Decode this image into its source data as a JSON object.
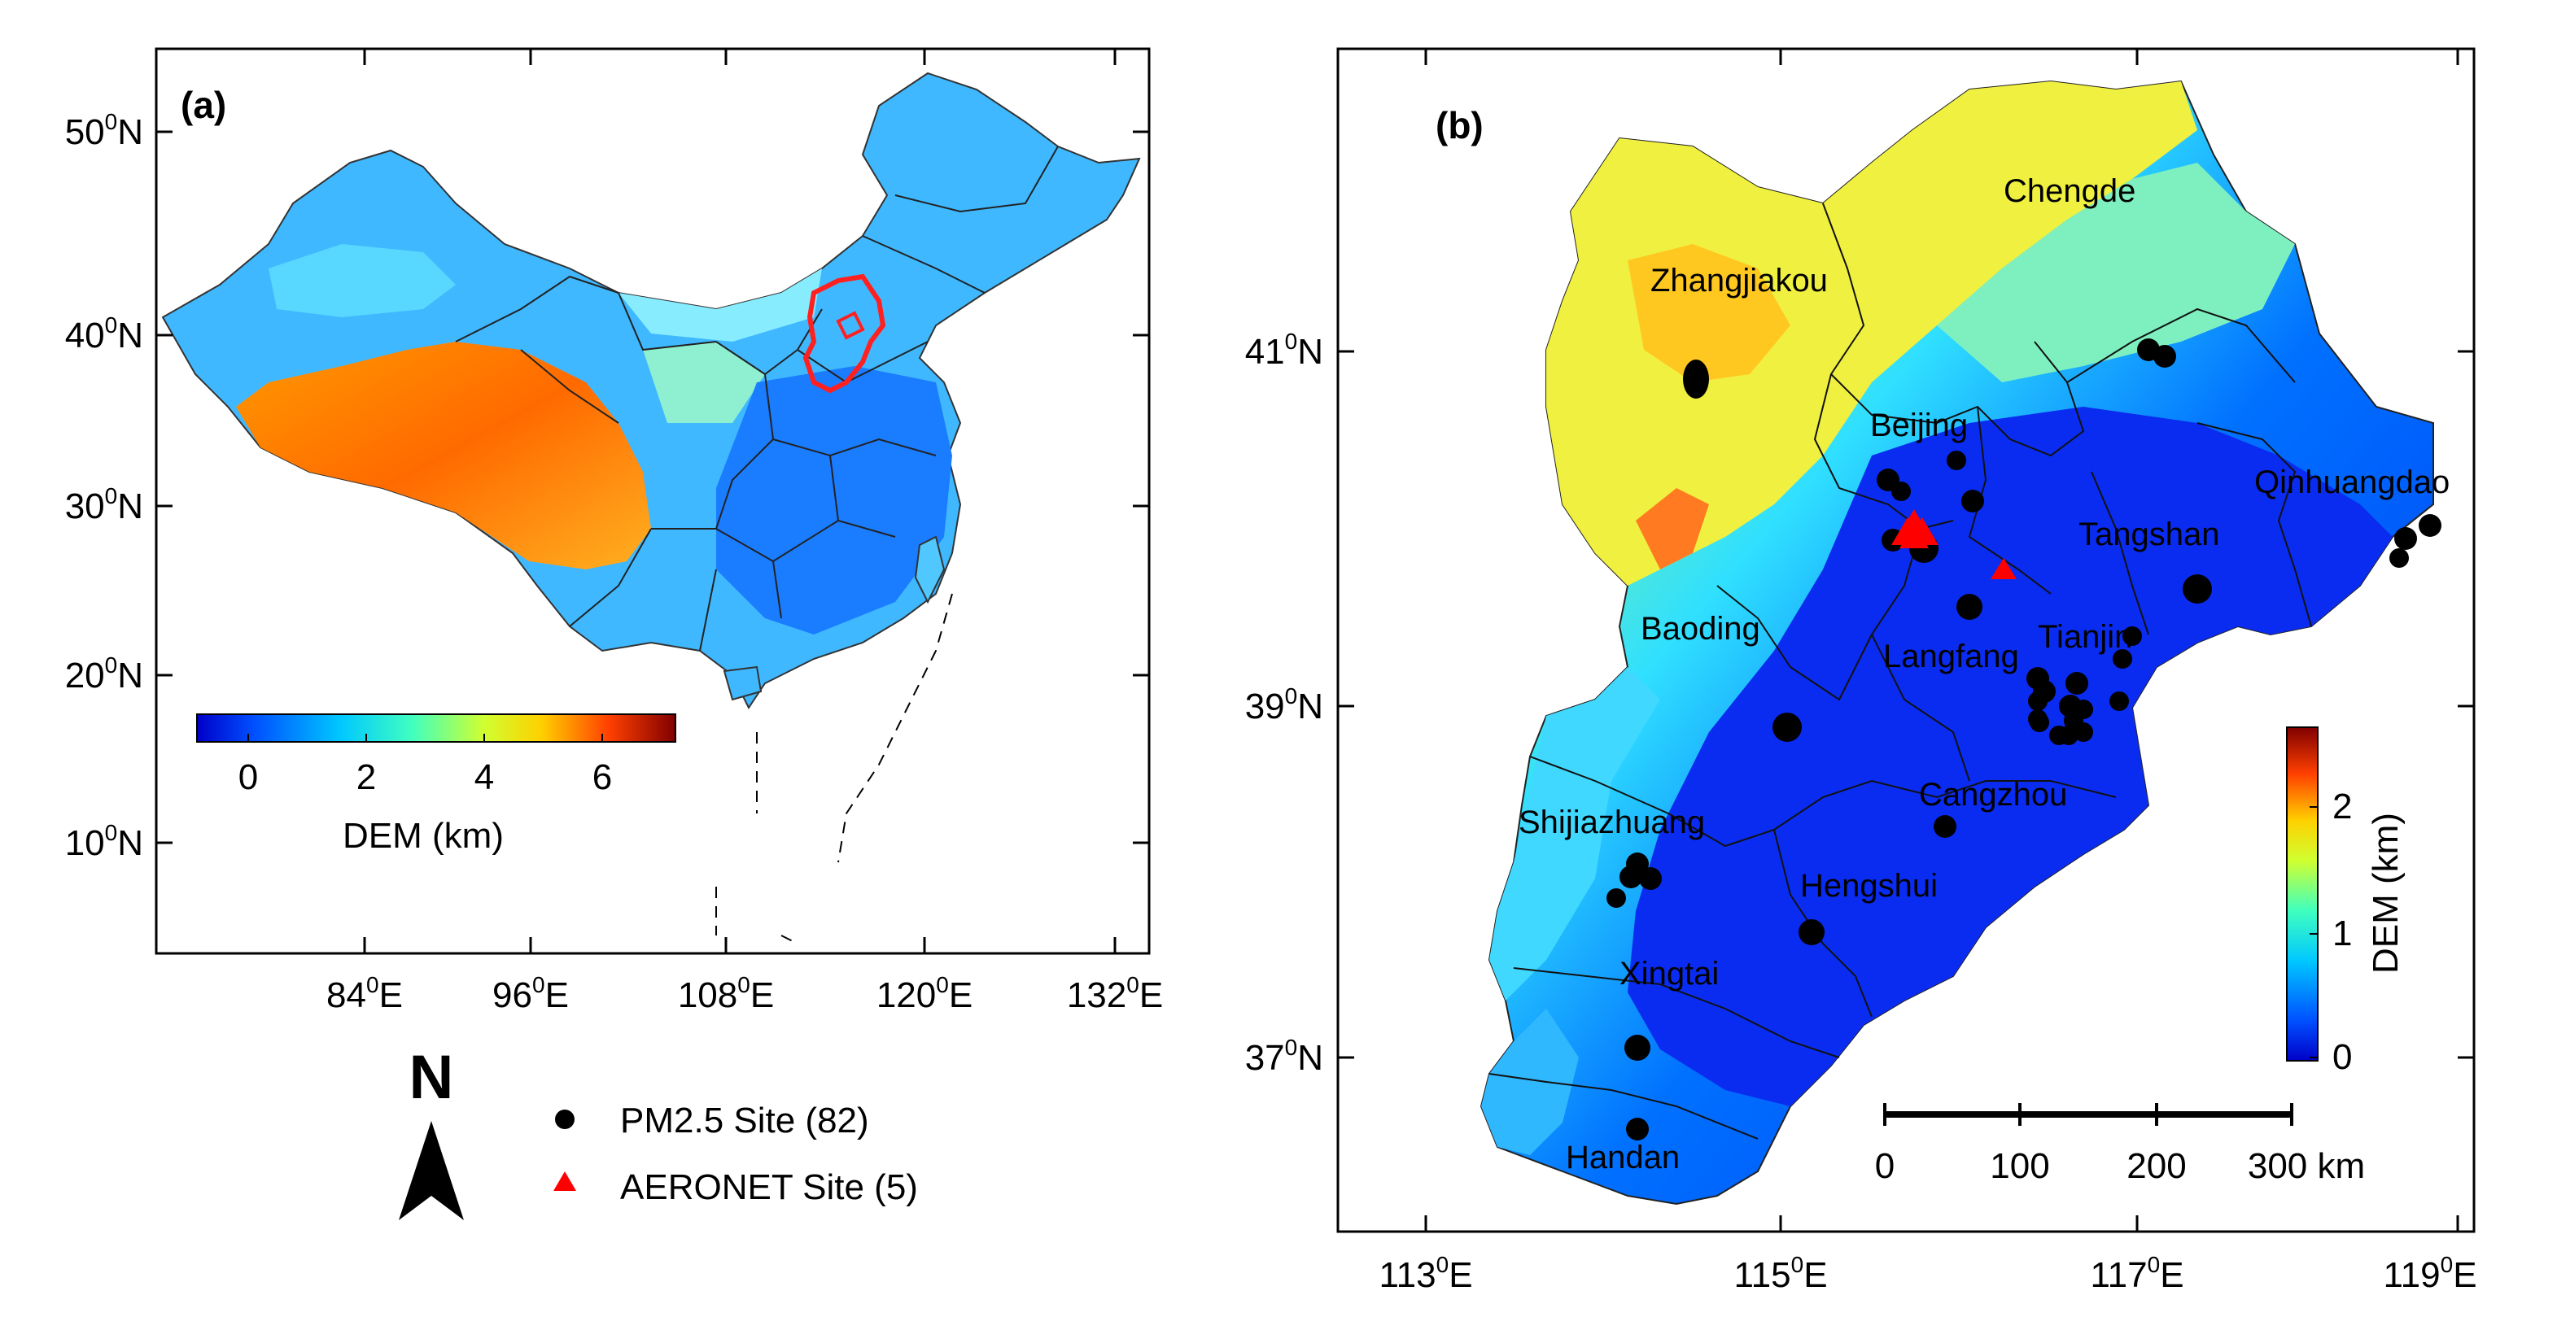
{
  "panel_a": {
    "label": "(a)",
    "lat_ticks": [
      "50",
      "40",
      "30",
      "20",
      "10"
    ],
    "lat_suffix": "N",
    "lon_ticks": [
      "84",
      "96",
      "108",
      "120",
      "132"
    ],
    "lon_suffix": "E",
    "degree": "0",
    "colorbar": {
      "ticks": [
        "0",
        "2",
        "4",
        "6"
      ],
      "title": "DEM (km)"
    },
    "study_region_color": "#ff2020"
  },
  "panel_b": {
    "label": "(b)",
    "lat_ticks": [
      "41",
      "39",
      "37"
    ],
    "lat_suffix": "N",
    "lon_ticks": [
      "113",
      "115",
      "117",
      "119"
    ],
    "lon_suffix": "E",
    "degree": "0",
    "cities": [
      "Chengde",
      "Zhangjiakou",
      "Beijing",
      "Qinhuangdao",
      "Tangshan",
      "Baoding",
      "Tianjin",
      "Langfang",
      "Cangzhou",
      "Shijiazhuang",
      "Hengshui",
      "Xingtai",
      "Handan"
    ],
    "colorbar": {
      "ticks": [
        "2",
        "1",
        "0"
      ],
      "title": "DEM (km)"
    },
    "scalebar": {
      "labels": [
        "0",
        "100",
        "200",
        "300 km"
      ]
    }
  },
  "legend": {
    "north": "N",
    "pm25": "PM2.5 Site (82)",
    "aeronet": "AERONET Site (5)"
  },
  "colors": {
    "pm25_marker": "#000000",
    "aeronet_marker": "#ff0000"
  }
}
